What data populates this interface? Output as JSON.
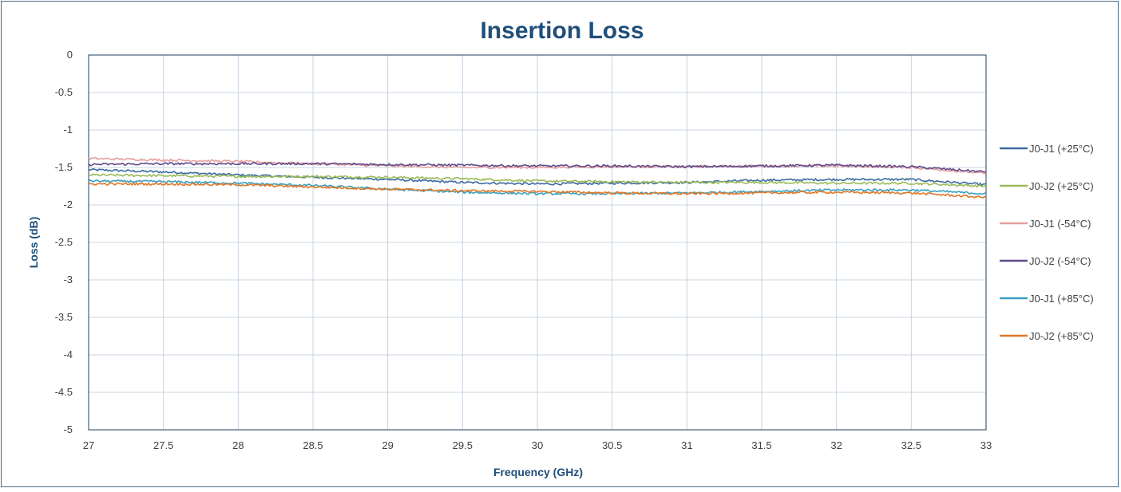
{
  "chart_data": {
    "type": "line",
    "title": "Insertion Loss",
    "xlabel": "Frequency (GHz)",
    "ylabel": "Loss (dB)",
    "xlim": [
      27,
      33
    ],
    "ylim": [
      -5,
      0
    ],
    "x_ticks": [
      "27",
      "27.5",
      "28",
      "28.5",
      "29",
      "29.5",
      "30",
      "30.5",
      "31",
      "31.5",
      "32",
      "32.5",
      "33"
    ],
    "y_ticks": [
      "0",
      "-0.5",
      "-1",
      "-1.5",
      "-2",
      "-2.5",
      "-3",
      "-3.5",
      "-4",
      "-4.5",
      "-5"
    ],
    "grid": true,
    "legend_position": "right",
    "series": [
      {
        "name": "J0-J1 (+25°C)",
        "color": "#3d6ba0",
        "x": [
          27,
          27.5,
          28,
          28.5,
          29,
          29.5,
          30,
          30.5,
          31,
          31.5,
          32,
          32.5,
          33
        ],
        "y": [
          -1.53,
          -1.56,
          -1.6,
          -1.63,
          -1.66,
          -1.7,
          -1.72,
          -1.71,
          -1.7,
          -1.67,
          -1.66,
          -1.66,
          -1.73
        ]
      },
      {
        "name": "J0-J2 (+25°C)",
        "color": "#9bbb59",
        "x": [
          27,
          27.5,
          28,
          28.5,
          29,
          29.5,
          30,
          30.5,
          31,
          31.5,
          32,
          32.5,
          33
        ],
        "y": [
          -1.6,
          -1.61,
          -1.62,
          -1.62,
          -1.63,
          -1.65,
          -1.68,
          -1.69,
          -1.7,
          -1.7,
          -1.71,
          -1.71,
          -1.75
        ]
      },
      {
        "name": "J0-J1 (-54°C)",
        "color": "#e6a0a0",
        "x": [
          27,
          27.5,
          28,
          28.5,
          29,
          29.5,
          30,
          30.5,
          31,
          31.5,
          32,
          32.5,
          33
        ],
        "y": [
          -1.38,
          -1.4,
          -1.42,
          -1.45,
          -1.48,
          -1.5,
          -1.5,
          -1.49,
          -1.49,
          -1.48,
          -1.48,
          -1.5,
          -1.58
        ]
      },
      {
        "name": "J0-J2 (-54°C)",
        "color": "#604a8a",
        "x": [
          27,
          27.5,
          28,
          28.5,
          29,
          29.5,
          30,
          30.5,
          31,
          31.5,
          32,
          32.5,
          33
        ],
        "y": [
          -1.46,
          -1.45,
          -1.45,
          -1.45,
          -1.46,
          -1.47,
          -1.48,
          -1.48,
          -1.49,
          -1.48,
          -1.47,
          -1.49,
          -1.56
        ]
      },
      {
        "name": "J0-J1 (+85°C)",
        "color": "#3aa0c0",
        "x": [
          27,
          27.5,
          28,
          28.5,
          29,
          29.5,
          30,
          30.5,
          31,
          31.5,
          32,
          32.5,
          33
        ],
        "y": [
          -1.68,
          -1.69,
          -1.71,
          -1.74,
          -1.79,
          -1.83,
          -1.85,
          -1.85,
          -1.84,
          -1.82,
          -1.8,
          -1.8,
          -1.85
        ]
      },
      {
        "name": "J0-J2 (+85°C)",
        "color": "#e07828",
        "x": [
          27,
          27.5,
          28,
          28.5,
          29,
          29.5,
          30,
          30.5,
          31,
          31.5,
          32,
          32.5,
          33
        ],
        "y": [
          -1.72,
          -1.72,
          -1.73,
          -1.76,
          -1.79,
          -1.81,
          -1.82,
          -1.84,
          -1.85,
          -1.84,
          -1.83,
          -1.84,
          -1.9
        ]
      }
    ]
  }
}
